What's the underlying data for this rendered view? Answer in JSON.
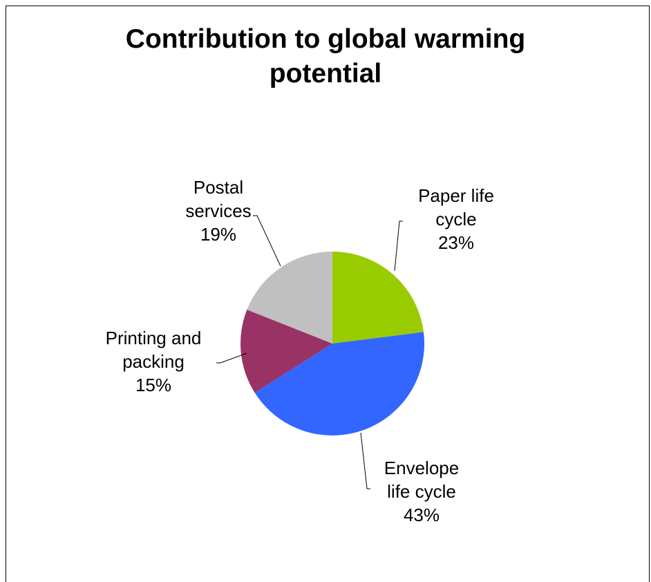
{
  "chart_data": {
    "type": "pie",
    "title_lines": [
      "Contribution to global warming",
      "potential"
    ],
    "slices": [
      {
        "label_lines": [
          "Paper life",
          "cycle"
        ],
        "pct_label": "23%",
        "value": 23,
        "color": "#99CC00"
      },
      {
        "label_lines": [
          "Envelope",
          "life cycle"
        ],
        "pct_label": "43%",
        "value": 43,
        "color": "#3366FF"
      },
      {
        "label_lines": [
          "Printing and",
          "packing"
        ],
        "pct_label": "15%",
        "value": 15,
        "color": "#993366"
      },
      {
        "label_lines": [
          "Postal",
          "services"
        ],
        "pct_label": "19%",
        "value": 19,
        "color": "#C0C0C0"
      }
    ],
    "start_angle": "12 o'clock",
    "direction": "clockwise",
    "legend": "none"
  }
}
